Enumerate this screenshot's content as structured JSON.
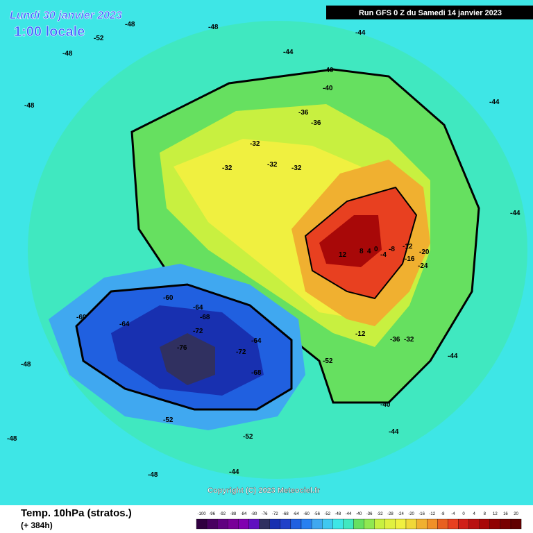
{
  "header": {
    "date": "Lundi 30 janvier 2023",
    "time": "1:00 locale",
    "run": "Run GFS 0 Z du Samedi 14 janvier 2023"
  },
  "footer": {
    "title": "Temp. 10hPa (stratos.)",
    "lead": "(+ 384h)",
    "copyright": "Copyright (C) 2023 Meteociel.fr"
  },
  "legend": {
    "labels": [
      "-100",
      "-96",
      "-92",
      "-88",
      "-84",
      "-80",
      "-76",
      "-72",
      "-68",
      "-64",
      "-60",
      "-56",
      "-52",
      "-48",
      "-44",
      "-40",
      "-36",
      "-32",
      "-28",
      "-24",
      "-20",
      "-16",
      "-12",
      "-8",
      "-4",
      "0",
      "4",
      "8",
      "12",
      "16",
      "20"
    ]
  },
  "contour_labels": [
    "-48",
    "-48",
    "-52",
    "-48",
    "-44",
    "-40",
    "-40",
    "-44",
    "-44",
    "-48",
    "-36",
    "-36",
    "-32",
    "-32",
    "-32",
    "-32",
    "12",
    "8",
    "4",
    "0",
    "-4",
    "-8",
    "-12",
    "-16",
    "-20",
    "-24",
    "-12",
    "-32",
    "-36",
    "-40",
    "-44",
    "-60",
    "-64",
    "-68",
    "-72",
    "-76",
    "-72",
    "-64",
    "-68",
    "-60",
    "-64",
    "-52",
    "-52",
    "-48",
    "-44",
    "-44",
    "-48",
    "-52",
    "-48",
    "-44"
  ]
}
